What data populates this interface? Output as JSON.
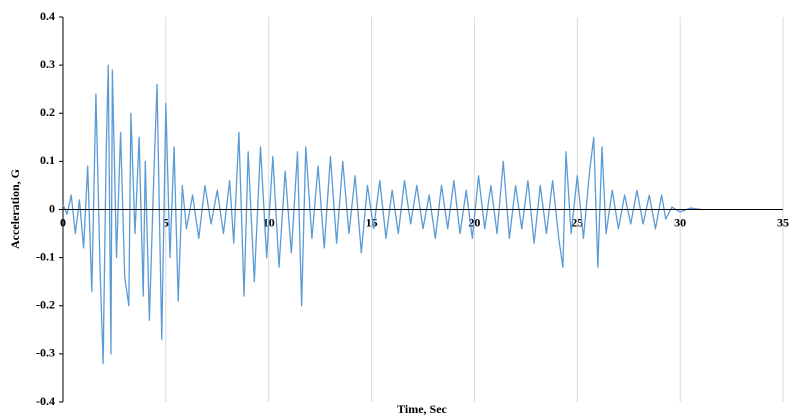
{
  "chart_data": {
    "type": "line",
    "x_label": "Time, Sec",
    "y_label": "Acceleration, G",
    "xlim": [
      0,
      35
    ],
    "xticks": [
      0,
      5,
      10,
      15,
      20,
      25,
      30,
      35
    ],
    "ylim": [
      -0.4,
      0.4
    ],
    "yticks": [
      -0.4,
      -0.3,
      -0.2,
      -0.1,
      0,
      0.1,
      0.2,
      0.3,
      0.4
    ],
    "grid": "x",
    "series": [
      {
        "color": "#5b9bd5",
        "x": [
          0,
          0.2,
          0.4,
          0.6,
          0.8,
          1.0,
          1.2,
          1.4,
          1.6,
          1.8,
          1.95,
          2.1,
          2.2,
          2.33,
          2.4,
          2.6,
          2.8,
          3.0,
          3.2,
          3.3,
          3.5,
          3.7,
          3.9,
          4.0,
          4.2,
          4.4,
          4.57,
          4.8,
          5.0,
          5.2,
          5.4,
          5.6,
          5.8,
          6.0,
          6.3,
          6.6,
          6.9,
          7.2,
          7.5,
          7.8,
          8.1,
          8.3,
          8.55,
          8.8,
          9.0,
          9.3,
          9.6,
          9.9,
          10.2,
          10.5,
          10.8,
          11.1,
          11.4,
          11.6,
          11.8,
          12.1,
          12.4,
          12.7,
          13.0,
          13.3,
          13.6,
          13.9,
          14.2,
          14.5,
          14.8,
          15.1,
          15.4,
          15.7,
          16.0,
          16.3,
          16.6,
          16.9,
          17.2,
          17.5,
          17.8,
          18.1,
          18.4,
          18.7,
          19.0,
          19.3,
          19.6,
          19.9,
          20.2,
          20.5,
          20.8,
          21.1,
          21.4,
          21.7,
          22.0,
          22.3,
          22.6,
          22.9,
          23.2,
          23.5,
          23.8,
          24.1,
          24.3,
          24.45,
          24.7,
          25.0,
          25.3,
          25.6,
          25.8,
          26.0,
          26.2,
          26.4,
          26.7,
          27.0,
          27.3,
          27.6,
          27.9,
          28.2,
          28.5,
          28.8,
          29.1,
          29.3,
          29.6,
          30.0,
          30.5,
          31.0
        ],
        "values": [
          0.01,
          -0.01,
          0.03,
          -0.05,
          0.02,
          -0.08,
          0.09,
          -0.17,
          0.24,
          -0.12,
          -0.32,
          0.12,
          0.3,
          -0.3,
          0.29,
          -0.1,
          0.16,
          -0.14,
          -0.2,
          0.2,
          -0.05,
          0.15,
          -0.18,
          0.1,
          -0.23,
          0.05,
          0.26,
          -0.27,
          0.22,
          -0.1,
          0.13,
          -0.19,
          0.05,
          -0.04,
          0.03,
          -0.06,
          0.05,
          -0.03,
          0.04,
          -0.05,
          0.06,
          -0.07,
          0.16,
          -0.18,
          0.12,
          -0.15,
          0.13,
          -0.1,
          0.11,
          -0.12,
          0.08,
          -0.09,
          0.12,
          -0.2,
          0.13,
          -0.06,
          0.09,
          -0.08,
          0.11,
          -0.07,
          0.1,
          -0.05,
          0.07,
          -0.09,
          0.05,
          -0.04,
          0.06,
          -0.06,
          0.04,
          -0.05,
          0.06,
          -0.03,
          0.05,
          -0.04,
          0.03,
          -0.06,
          0.05,
          -0.04,
          0.06,
          -0.05,
          0.04,
          -0.06,
          0.07,
          -0.04,
          0.05,
          -0.05,
          0.1,
          -0.06,
          0.05,
          -0.04,
          0.06,
          -0.07,
          0.05,
          -0.05,
          0.06,
          -0.06,
          -0.12,
          0.12,
          -0.05,
          0.07,
          -0.06,
          0.08,
          0.15,
          -0.12,
          0.13,
          -0.05,
          0.04,
          -0.04,
          0.03,
          -0.03,
          0.04,
          -0.03,
          0.03,
          -0.04,
          0.03,
          -0.02,
          0.005,
          -0.005,
          0.003,
          0
        ]
      }
    ]
  }
}
